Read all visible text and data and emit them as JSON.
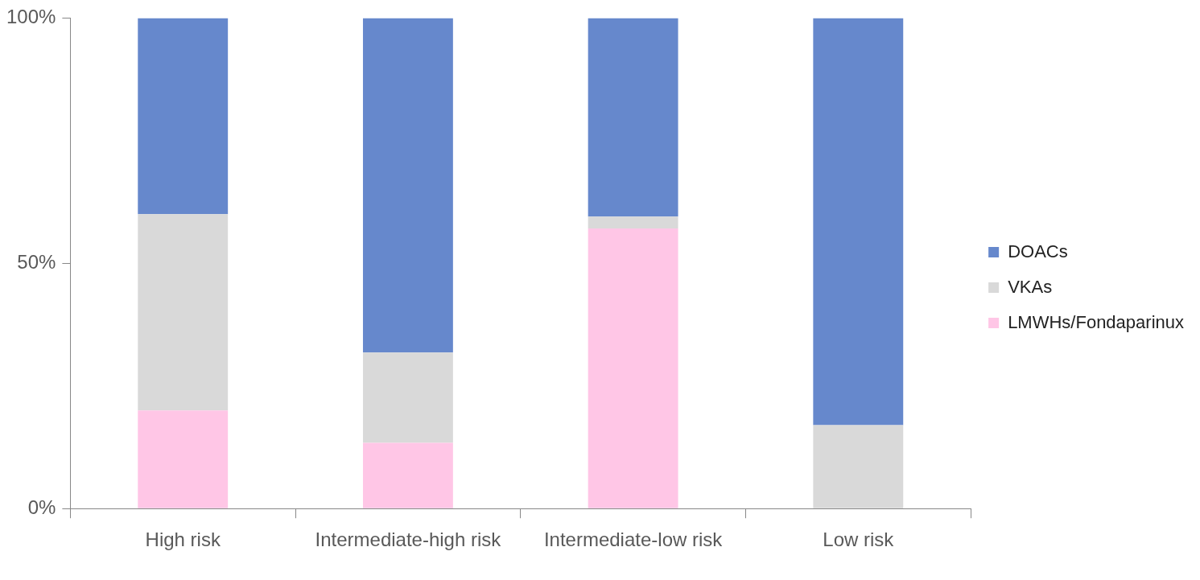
{
  "chart_data": {
    "type": "bar",
    "stacked": true,
    "categories": [
      "High risk",
      "Intermediate-high risk",
      "Intermediate-low risk",
      "Low risk"
    ],
    "series": [
      {
        "name": "LMWHs/Fondaparinux",
        "color": "#ffc6e6",
        "values": [
          20,
          13.4,
          57.1,
          0
        ]
      },
      {
        "name": "VKAs",
        "color": "#d9d9d9",
        "values": [
          40,
          18.4,
          2.4,
          17
        ]
      },
      {
        "name": "DOACs",
        "color": "#6688cc",
        "values": [
          40,
          68.2,
          40.5,
          83
        ]
      }
    ],
    "ylim": [
      0,
      100
    ],
    "yticks": [
      {
        "value": 0,
        "label": "0%"
      },
      {
        "value": 50,
        "label": "50%"
      },
      {
        "value": 100,
        "label": "100%"
      }
    ],
    "grid": false,
    "legend": "right"
  }
}
